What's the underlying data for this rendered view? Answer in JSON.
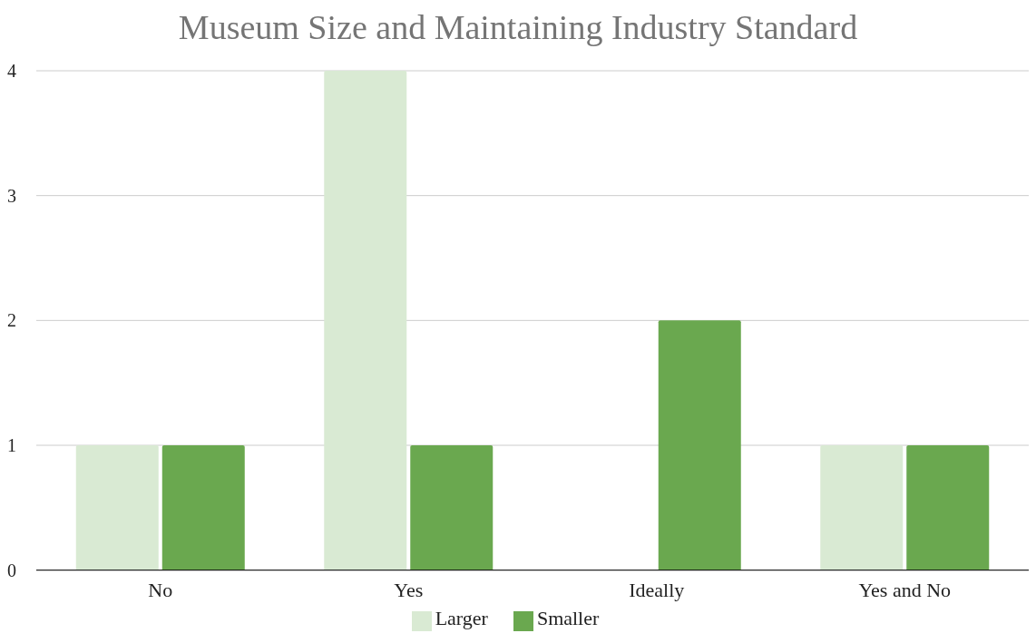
{
  "chart_data": {
    "type": "bar",
    "title": "Museum Size and Maintaining Industry Standard",
    "categories": [
      "No",
      "Yes",
      "Ideally",
      "Yes and No"
    ],
    "series": [
      {
        "name": "Larger",
        "color": "#d9ead3",
        "values": [
          1,
          4,
          0,
          1
        ]
      },
      {
        "name": "Smaller",
        "color": "#6aa84f",
        "values": [
          1,
          1,
          2,
          1
        ]
      }
    ],
    "ylim": [
      0,
      4
    ],
    "yticks": [
      0,
      1,
      2,
      3,
      4
    ],
    "grid": "y",
    "legend": "bottom"
  }
}
